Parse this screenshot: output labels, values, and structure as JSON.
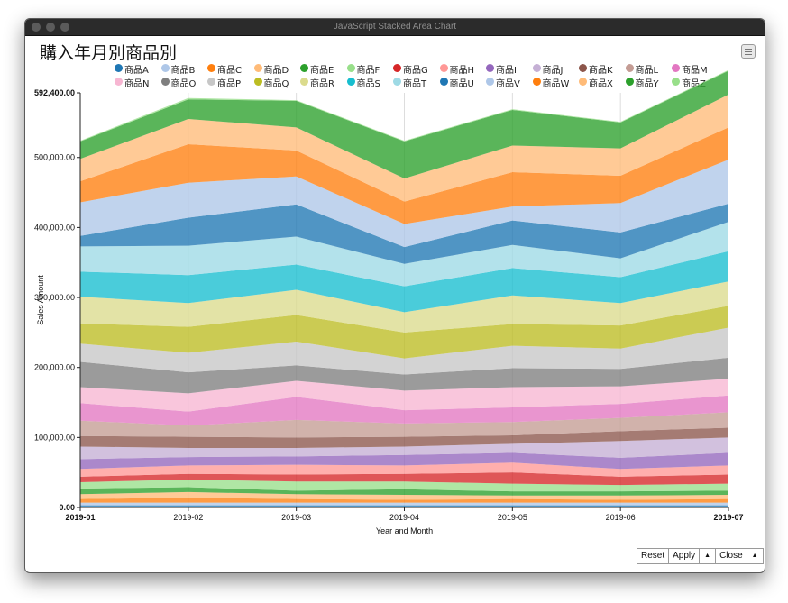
{
  "window": {
    "title": "JavaScript Stacked Area Chart"
  },
  "chart_data": {
    "type": "area",
    "stacked": true,
    "title": "購入年月別商品別",
    "xlabel": "Year and Month",
    "ylabel": "Sales Amount",
    "categories": [
      "2019-01",
      "2019-02",
      "2019-03",
      "2019-04",
      "2019-05",
      "2019-06",
      "2019-07"
    ],
    "ylim": [
      0,
      592400
    ],
    "yticks": [
      "0.00",
      "100,000.00",
      "200,000.00",
      "300,000.00",
      "400,000.00",
      "500,000.00",
      "592,400.00"
    ],
    "grid": true,
    "legend_position": "top",
    "series": [
      {
        "name": "商品A",
        "color": "#1f77b4",
        "values": [
          3000,
          3000,
          3000,
          3000,
          3000,
          3000,
          3000
        ]
      },
      {
        "name": "商品B",
        "color": "#aec7e8",
        "values": [
          4000,
          4000,
          4000,
          4000,
          4000,
          4000,
          4000
        ]
      },
      {
        "name": "商品C",
        "color": "#ff7f0e",
        "values": [
          5000,
          7000,
          5000,
          4000,
          5000,
          4000,
          5000
        ]
      },
      {
        "name": "商品D",
        "color": "#ffbb78",
        "values": [
          7000,
          8000,
          7000,
          7000,
          5000,
          6000,
          6000
        ]
      },
      {
        "name": "商品E",
        "color": "#2ca02c",
        "values": [
          8000,
          7000,
          5000,
          8000,
          6000,
          6000,
          6000
        ]
      },
      {
        "name": "商品F",
        "color": "#98df8a",
        "values": [
          9000,
          11000,
          13000,
          11000,
          11000,
          9000,
          10000
        ]
      },
      {
        "name": "商品G",
        "color": "#d62728",
        "values": [
          8000,
          8000,
          10000,
          11000,
          16000,
          12000,
          13000
        ]
      },
      {
        "name": "商品H",
        "color": "#ff9896",
        "values": [
          11000,
          12000,
          14000,
          12000,
          14000,
          11000,
          13000
        ]
      },
      {
        "name": "商品I",
        "color": "#9467bd",
        "values": [
          14000,
          12000,
          12000,
          15000,
          14000,
          16000,
          18000
        ]
      },
      {
        "name": "商品J",
        "color": "#c5b0d5",
        "values": [
          18000,
          13000,
          12000,
          12000,
          13000,
          24000,
          22000
        ]
      },
      {
        "name": "商品K",
        "color": "#8c564b",
        "values": [
          15000,
          16000,
          15000,
          14000,
          12000,
          14000,
          14000
        ]
      },
      {
        "name": "商品L",
        "color": "#c49c94",
        "values": [
          22000,
          16000,
          25000,
          19000,
          19000,
          19000,
          22000
        ]
      },
      {
        "name": "商品M",
        "color": "#e377c2",
        "values": [
          25000,
          20000,
          33000,
          19000,
          21000,
          20000,
          24000
        ]
      },
      {
        "name": "商品N",
        "color": "#f7b6d2",
        "values": [
          23000,
          26000,
          23000,
          28000,
          29000,
          25000,
          24000
        ]
      },
      {
        "name": "商品O",
        "color": "#7f7f7f",
        "values": [
          36000,
          30000,
          22000,
          23000,
          27000,
          25000,
          30000
        ]
      },
      {
        "name": "商品P",
        "color": "#c7c7c7",
        "values": [
          26000,
          28000,
          34000,
          23000,
          32000,
          29000,
          43000
        ]
      },
      {
        "name": "商品Q",
        "color": "#bcbd22",
        "values": [
          29000,
          37000,
          38000,
          37000,
          31000,
          33000,
          31000
        ]
      },
      {
        "name": "商品R",
        "color": "#dbdb8d",
        "values": [
          38000,
          34000,
          36000,
          29000,
          41000,
          32000,
          35000
        ]
      },
      {
        "name": "商品S",
        "color": "#17becf",
        "values": [
          36000,
          40000,
          36000,
          37000,
          39000,
          37000,
          43000
        ]
      },
      {
        "name": "商品T",
        "color": "#9edae5",
        "values": [
          36000,
          42000,
          40000,
          32000,
          33000,
          27000,
          42000
        ]
      },
      {
        "name": "商品U",
        "color": "#1f77b4",
        "values": [
          15000,
          40000,
          46000,
          24000,
          35000,
          37000,
          26000
        ]
      },
      {
        "name": "商品V",
        "color": "#aec7e8",
        "values": [
          48000,
          50000,
          40000,
          33000,
          20000,
          42000,
          63000
        ]
      },
      {
        "name": "商品W",
        "color": "#ff7f0e",
        "values": [
          30000,
          55000,
          37000,
          32000,
          49000,
          39000,
          46000
        ]
      },
      {
        "name": "商品X",
        "color": "#ffbb78",
        "values": [
          32000,
          36000,
          33000,
          33000,
          38000,
          39000,
          47000
        ]
      },
      {
        "name": "商品Y",
        "color": "#2ca02c",
        "values": [
          25000,
          28000,
          38000,
          53000,
          51000,
          37000,
          34000
        ]
      },
      {
        "name": "商品Z",
        "color": "#98df8a",
        "values": [
          1000,
          2000,
          1000,
          1000,
          1000,
          1000,
          1000
        ]
      }
    ]
  },
  "buttons": {
    "reset": "Reset",
    "apply": "Apply",
    "up_arrow": "▲",
    "close": "Close",
    "up_arrow2": "▲"
  }
}
